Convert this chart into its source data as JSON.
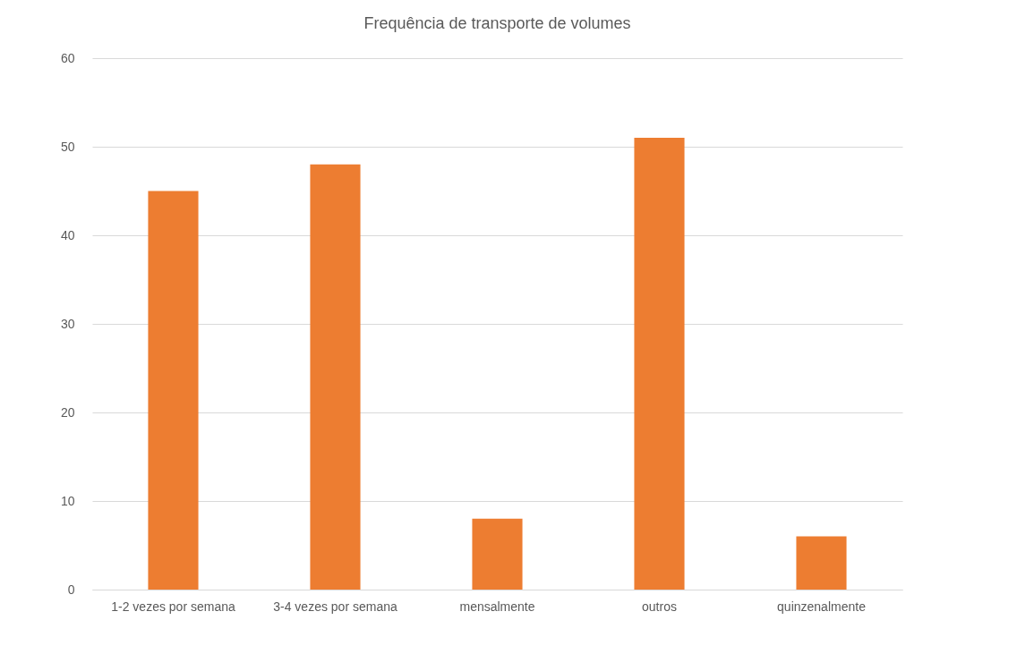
{
  "chart_data": {
    "type": "bar",
    "title": "Frequência de transporte de volumes",
    "categories": [
      "1-2 vezes por semana",
      "3-4 vezes por semana",
      "mensalmente",
      "outros",
      "quinzenalmente"
    ],
    "values": [
      45,
      48,
      8,
      51,
      6
    ],
    "color": "#ed7d31",
    "ylim": [
      0,
      60
    ],
    "yticks": [
      0,
      10,
      20,
      30,
      40,
      50,
      60
    ],
    "grid": "y"
  }
}
